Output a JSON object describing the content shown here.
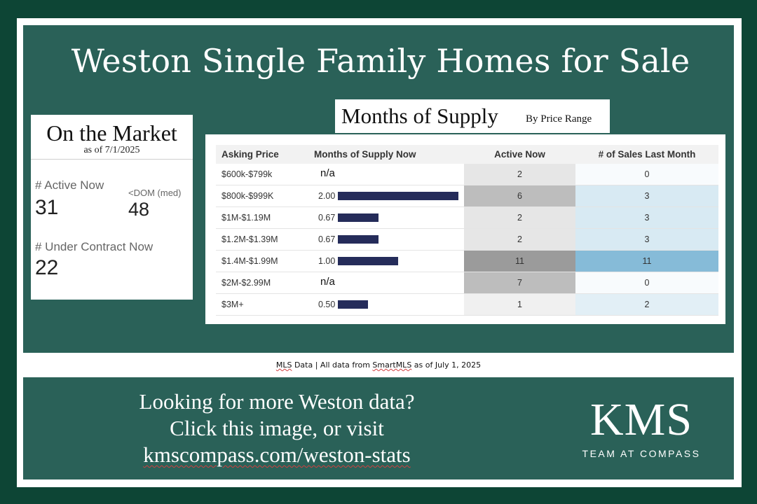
{
  "title": "Weston Single Family Homes for Sale",
  "market": {
    "title": "On the Market",
    "as_of": "as of 7/1/2025",
    "active_label": "# Active Now",
    "active_value": "31",
    "dom_label": "<DOM (med)",
    "dom_value": "48",
    "contract_label": "# Under Contract Now",
    "contract_value": "22"
  },
  "supply": {
    "title": "Months of Supply",
    "subtitle": "By Price Range"
  },
  "chart_data": {
    "type": "table",
    "columns": [
      "Asking Price",
      "Months of Supply Now",
      "Active Now",
      "# of Sales Last Month"
    ],
    "rows": [
      {
        "price": "$600k-$799k",
        "mos": null,
        "mos_label": "n/a",
        "active": "2",
        "sales": "0"
      },
      {
        "price": "$800k-$999K",
        "mos": 2.0,
        "mos_label": "2.00",
        "active": "6",
        "sales": "3"
      },
      {
        "price": "$1M-$1.19M",
        "mos": 0.67,
        "mos_label": "0.67",
        "active": "2",
        "sales": "3"
      },
      {
        "price": "$1.2M-$1.39M",
        "mos": 0.67,
        "mos_label": "0.67",
        "active": "2",
        "sales": "3"
      },
      {
        "price": "$1.4M-$1.99M",
        "mos": 1.0,
        "mos_label": "1.00",
        "active": "11",
        "sales": "11"
      },
      {
        "price": "$2M-$2.99M",
        "mos": null,
        "mos_label": "n/a",
        "active": "7",
        "sales": "0"
      },
      {
        "price": "$3M+",
        "mos": 0.5,
        "mos_label": "0.50",
        "active": "1",
        "sales": "2"
      }
    ],
    "bar_max": 2.0,
    "bar_color": "#252c5a",
    "active_colors": [
      "#e6e6e6",
      "#bdbdbd",
      "#e6e6e6",
      "#e6e6e6",
      "#9b9b9b",
      "#bdbdbd",
      "#f0f0f0"
    ],
    "sales_colors": [
      "#f8fbfd",
      "#d8eaf3",
      "#d8eaf3",
      "#d8eaf3",
      "#86bbd8",
      "#f8fbfd",
      "#e2eff6"
    ]
  },
  "source": {
    "part1": "MLS",
    "part2": " Data | All data from ",
    "part3": "SmartMLS",
    "part4": " as of July 1, 2025"
  },
  "cta": {
    "line1": "Looking for more Weston data?",
    "line2": "Click this image, or visit",
    "link": "kmscompass.com/weston-stats"
  },
  "brand": {
    "name": "KMS",
    "tagline": "TEAM AT COMPASS"
  },
  "colors": {
    "green": "#2a6158",
    "dark_green": "#0d4535"
  }
}
